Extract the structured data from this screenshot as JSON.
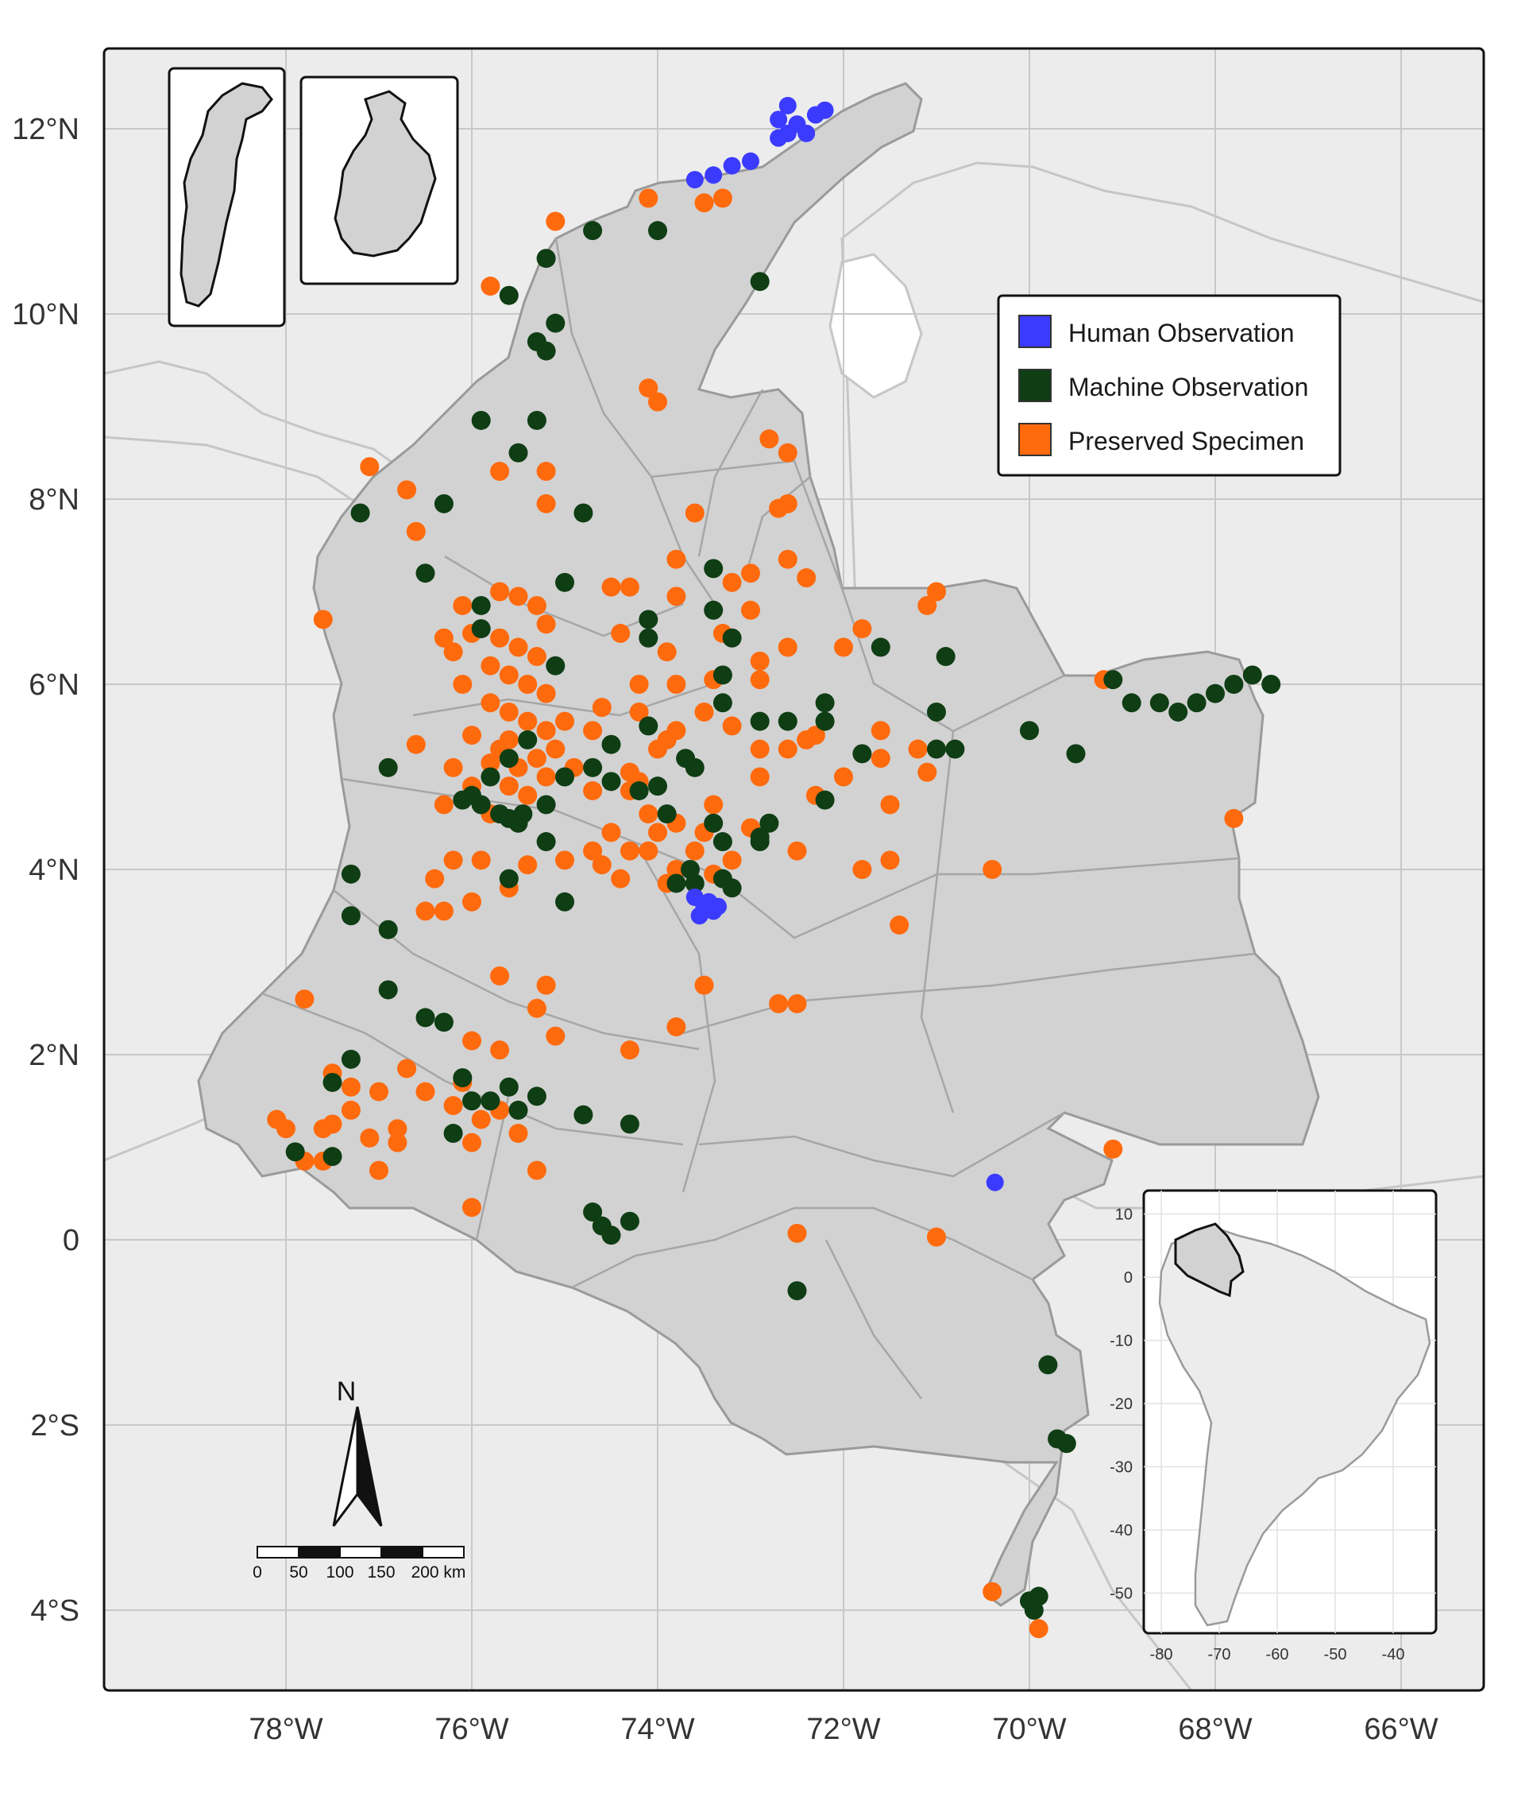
{
  "map": {
    "lon_labels": [
      "78°W",
      "76°W",
      "74°W",
      "72°W",
      "70°W",
      "68°W",
      "66°W"
    ],
    "lat_labels": [
      "12°N",
      "10°N",
      "8°N",
      "6°N",
      "4°N",
      "2°N",
      "0",
      "2°S",
      "4°S"
    ],
    "colors": {
      "sea": "#ececec",
      "land": "#d2d2d2",
      "neighbor_land": "#ececec",
      "border": "#9a9a9a",
      "grid": "#c8c8c8",
      "human": "#3b3bff",
      "machine": "#0f3d14",
      "preserved": "#ff6a0d"
    }
  },
  "legend": {
    "items": [
      {
        "label": "Human Observation",
        "color": "#3b3bff"
      },
      {
        "label": "Machine Observation",
        "color": "#0f3d14"
      },
      {
        "label": "Preserved Specimen",
        "color": "#ff6a0d"
      }
    ]
  },
  "scale_bar": {
    "ticks": [
      "0",
      "50",
      "100",
      "150",
      "200 km"
    ]
  },
  "north_arrow": {
    "label": "N"
  },
  "inset": {
    "y_ticks": [
      "10",
      "0",
      "-10",
      "-20",
      "-30",
      "-40",
      "-50"
    ],
    "x_ticks": [
      "-80",
      "-70",
      "-60",
      "-50",
      "-40"
    ]
  },
  "occurrences": {
    "human": [
      [
        -73.6,
        3.7
      ],
      [
        -73.5,
        3.6
      ],
      [
        -73.4,
        3.55
      ],
      [
        -73.55,
        3.5
      ],
      [
        -73.45,
        3.65
      ],
      [
        -73.35,
        3.6
      ],
      [
        -72.6,
        12.25
      ],
      [
        -72.7,
        12.1
      ],
      [
        -72.5,
        12.05
      ],
      [
        -72.3,
        12.15
      ],
      [
        -72.2,
        12.2
      ],
      [
        -72.6,
        11.95
      ],
      [
        -72.4,
        11.95
      ],
      [
        -72.7,
        11.9
      ],
      [
        -73.0,
        11.65
      ],
      [
        -73.2,
        11.6
      ],
      [
        -73.4,
        11.5
      ],
      [
        -73.6,
        11.45
      ],
      [
        -70.37,
        0.62
      ]
    ],
    "machine": [
      [
        -72.9,
        10.35
      ],
      [
        -74.0,
        10.9
      ],
      [
        -74.7,
        10.9
      ],
      [
        -75.2,
        10.6
      ],
      [
        -75.6,
        10.2
      ],
      [
        -75.1,
        9.9
      ],
      [
        -75.2,
        9.6
      ],
      [
        -75.3,
        9.7
      ],
      [
        -75.9,
        8.85
      ],
      [
        -75.3,
        8.85
      ],
      [
        -75.5,
        8.5
      ],
      [
        -74.8,
        7.85
      ],
      [
        -77.2,
        7.85
      ],
      [
        -76.3,
        7.95
      ],
      [
        -76.5,
        7.2
      ],
      [
        -75.0,
        7.1
      ],
      [
        -73.4,
        7.25
      ],
      [
        -73.4,
        6.8
      ],
      [
        -73.2,
        6.5
      ],
      [
        -75.1,
        6.2
      ],
      [
        -75.9,
        6.85
      ],
      [
        -75.9,
        6.6
      ],
      [
        -74.1,
        6.7
      ],
      [
        -74.1,
        6.5
      ],
      [
        -73.3,
        6.1
      ],
      [
        -73.3,
        5.8
      ],
      [
        -72.9,
        5.6
      ],
      [
        -72.6,
        5.6
      ],
      [
        -72.2,
        5.8
      ],
      [
        -72.2,
        5.6
      ],
      [
        -71.8,
        5.25
      ],
      [
        -71.0,
        5.3
      ],
      [
        -70.8,
        5.3
      ],
      [
        -70.0,
        5.5
      ],
      [
        -69.5,
        5.25
      ],
      [
        -71.0,
        5.7
      ],
      [
        -70.9,
        6.3
      ],
      [
        -71.6,
        6.4
      ],
      [
        -68.9,
        5.8
      ],
      [
        -68.6,
        5.8
      ],
      [
        -68.4,
        5.7
      ],
      [
        -68.2,
        5.8
      ],
      [
        -68.0,
        5.9
      ],
      [
        -67.8,
        6.0
      ],
      [
        -67.6,
        6.1
      ],
      [
        -67.4,
        6.0
      ],
      [
        -69.1,
        6.05
      ],
      [
        -75.4,
        5.4
      ],
      [
        -75.6,
        5.2
      ],
      [
        -75.8,
        5.0
      ],
      [
        -76.0,
        4.8
      ],
      [
        -75.7,
        4.6
      ],
      [
        -75.5,
        4.5
      ],
      [
        -75.2,
        4.7
      ],
      [
        -75.0,
        5.0
      ],
      [
        -74.7,
        5.1
      ],
      [
        -76.9,
        5.1
      ],
      [
        -74.1,
        5.55
      ],
      [
        -73.7,
        5.2
      ],
      [
        -74.0,
        4.9
      ],
      [
        -73.9,
        4.6
      ],
      [
        -73.4,
        4.5
      ],
      [
        -73.3,
        4.3
      ],
      [
        -72.9,
        4.35
      ],
      [
        -72.8,
        4.5
      ],
      [
        -73.6,
        3.85
      ],
      [
        -73.2,
        3.8
      ],
      [
        -73.3,
        3.9
      ],
      [
        -75.6,
        3.9
      ],
      [
        -75.0,
        3.65
      ],
      [
        -77.3,
        3.95
      ],
      [
        -77.3,
        3.5
      ],
      [
        -76.9,
        3.35
      ],
      [
        -75.2,
        4.3
      ],
      [
        -72.2,
        4.75
      ],
      [
        -76.9,
        2.7
      ],
      [
        -76.5,
        2.4
      ],
      [
        -76.3,
        2.35
      ],
      [
        -77.3,
        1.95
      ],
      [
        -77.5,
        1.7
      ],
      [
        -76.1,
        1.75
      ],
      [
        -76.0,
        1.5
      ],
      [
        -75.8,
        1.5
      ],
      [
        -75.6,
        1.65
      ],
      [
        -75.5,
        1.4
      ],
      [
        -75.3,
        1.55
      ],
      [
        -74.8,
        1.35
      ],
      [
        -74.3,
        1.25
      ],
      [
        -76.2,
        1.15
      ],
      [
        -77.5,
        0.9
      ],
      [
        -77.9,
        0.95
      ],
      [
        -74.7,
        0.3
      ],
      [
        -74.6,
        0.15
      ],
      [
        -74.5,
        0.05
      ],
      [
        -74.3,
        0.2
      ],
      [
        -72.5,
        -0.55
      ],
      [
        -69.8,
        -1.35
      ],
      [
        -69.7,
        -2.15
      ],
      [
        -69.6,
        -2.2
      ],
      [
        -69.9,
        -3.85
      ],
      [
        -69.95,
        -4.0
      ],
      [
        -70.0,
        -3.9
      ],
      [
        -73.65,
        4.0
      ],
      [
        -73.8,
        3.85
      ],
      [
        -72.9,
        4.3
      ],
      [
        -75.45,
        4.6
      ],
      [
        -75.6,
        4.55
      ],
      [
        -74.5,
        5.35
      ],
      [
        -74.5,
        4.95
      ],
      [
        -74.2,
        4.85
      ],
      [
        -73.6,
        5.1
      ],
      [
        -75.9,
        4.7
      ],
      [
        -76.1,
        4.75
      ]
    ],
    "preserved": [
      [
        -73.3,
        11.25
      ],
      [
        -73.5,
        11.2
      ],
      [
        -74.1,
        11.25
      ],
      [
        -75.1,
        11.0
      ],
      [
        -75.8,
        10.3
      ],
      [
        -74.1,
        9.2
      ],
      [
        -74.0,
        9.05
      ],
      [
        -77.1,
        8.35
      ],
      [
        -76.7,
        8.1
      ],
      [
        -76.6,
        7.65
      ],
      [
        -75.7,
        8.3
      ],
      [
        -75.2,
        8.3
      ],
      [
        -75.2,
        7.95
      ],
      [
        -73.6,
        7.85
      ],
      [
        -72.8,
        8.65
      ],
      [
        -72.6,
        8.5
      ],
      [
        -72.6,
        7.95
      ],
      [
        -72.7,
        7.9
      ],
      [
        -72.6,
        7.35
      ],
      [
        -72.4,
        7.15
      ],
      [
        -73.2,
        7.1
      ],
      [
        -73.0,
        7.2
      ],
      [
        -73.8,
        7.35
      ],
      [
        -74.3,
        7.05
      ],
      [
        -74.5,
        7.05
      ],
      [
        -73.8,
        6.95
      ],
      [
        -75.7,
        7.0
      ],
      [
        -75.5,
        6.95
      ],
      [
        -75.3,
        6.85
      ],
      [
        -75.2,
        6.65
      ],
      [
        -76.1,
        6.85
      ],
      [
        -76.3,
        6.5
      ],
      [
        -76.2,
        6.35
      ],
      [
        -76.0,
        6.55
      ],
      [
        -75.7,
        6.5
      ],
      [
        -75.5,
        6.4
      ],
      [
        -75.3,
        6.3
      ],
      [
        -75.6,
        6.1
      ],
      [
        -75.8,
        6.2
      ],
      [
        -76.1,
        6.0
      ],
      [
        -75.4,
        6.0
      ],
      [
        -75.2,
        5.9
      ],
      [
        -75.8,
        5.8
      ],
      [
        -75.6,
        5.7
      ],
      [
        -75.4,
        5.6
      ],
      [
        -75.2,
        5.5
      ],
      [
        -75.0,
        5.6
      ],
      [
        -75.6,
        5.4
      ],
      [
        -75.7,
        5.3
      ],
      [
        -75.8,
        5.15
      ],
      [
        -75.5,
        5.1
      ],
      [
        -75.3,
        5.2
      ],
      [
        -75.1,
        5.3
      ],
      [
        -74.9,
        5.1
      ],
      [
        -75.6,
        4.9
      ],
      [
        -75.4,
        4.8
      ],
      [
        -75.8,
        4.6
      ],
      [
        -76.0,
        4.9
      ],
      [
        -76.3,
        4.7
      ],
      [
        -74.3,
        4.85
      ],
      [
        -74.1,
        4.6
      ],
      [
        -74.0,
        4.4
      ],
      [
        -74.3,
        4.2
      ],
      [
        -74.6,
        4.05
      ],
      [
        -74.4,
        3.9
      ],
      [
        -73.8,
        4.5
      ],
      [
        -73.6,
        4.2
      ],
      [
        -73.8,
        4.0
      ],
      [
        -73.4,
        3.95
      ],
      [
        -73.2,
        4.1
      ],
      [
        -73.5,
        4.4
      ],
      [
        -74.1,
        4.2
      ],
      [
        -73.9,
        3.85
      ],
      [
        -74.5,
        4.4
      ],
      [
        -74.7,
        4.2
      ],
      [
        -75.0,
        4.1
      ],
      [
        -75.4,
        4.05
      ],
      [
        -75.9,
        4.1
      ],
      [
        -76.2,
        4.1
      ],
      [
        -75.6,
        3.8
      ],
      [
        -76.3,
        3.55
      ],
      [
        -76.5,
        3.55
      ],
      [
        -76.4,
        3.9
      ],
      [
        -76.0,
        3.65
      ],
      [
        -74.3,
        5.05
      ],
      [
        -74.0,
        5.3
      ],
      [
        -73.8,
        5.5
      ],
      [
        -73.5,
        5.7
      ],
      [
        -73.2,
        5.55
      ],
      [
        -72.9,
        5.3
      ],
      [
        -72.6,
        5.3
      ],
      [
        -72.4,
        5.4
      ],
      [
        -72.0,
        5.0
      ],
      [
        -71.6,
        5.5
      ],
      [
        -71.2,
        5.3
      ],
      [
        -71.6,
        5.2
      ],
      [
        -71.5,
        4.7
      ],
      [
        -72.3,
        4.8
      ],
      [
        -72.5,
        4.2
      ],
      [
        -73.0,
        4.45
      ],
      [
        -73.4,
        4.7
      ],
      [
        -71.8,
        4.0
      ],
      [
        -71.5,
        4.1
      ],
      [
        -71.4,
        3.4
      ],
      [
        -72.7,
        2.55
      ],
      [
        -72.5,
        2.55
      ],
      [
        -73.5,
        2.75
      ],
      [
        -73.8,
        2.3
      ],
      [
        -74.3,
        2.05
      ],
      [
        -75.2,
        2.75
      ],
      [
        -75.3,
        2.5
      ],
      [
        -75.7,
        2.85
      ],
      [
        -75.7,
        2.05
      ],
      [
        -75.1,
        2.2
      ],
      [
        -76.0,
        2.15
      ],
      [
        -76.1,
        1.7
      ],
      [
        -76.7,
        1.85
      ],
      [
        -76.5,
        1.6
      ],
      [
        -76.2,
        1.45
      ],
      [
        -75.9,
        1.3
      ],
      [
        -75.7,
        1.4
      ],
      [
        -75.5,
        1.15
      ],
      [
        -76.0,
        1.05
      ],
      [
        -76.8,
        1.2
      ],
      [
        -76.8,
        1.05
      ],
      [
        -77.0,
        1.6
      ],
      [
        -77.1,
        1.1
      ],
      [
        -77.3,
        1.4
      ],
      [
        -77.5,
        1.25
      ],
      [
        -77.3,
        1.65
      ],
      [
        -77.5,
        1.8
      ],
      [
        -77.8,
        2.6
      ],
      [
        -78.1,
        1.3
      ],
      [
        -78.0,
        1.2
      ],
      [
        -77.6,
        1.2
      ],
      [
        -77.6,
        0.85
      ],
      [
        -77.8,
        0.85
      ],
      [
        -77.0,
        0.75
      ],
      [
        -75.3,
        0.75
      ],
      [
        -76.0,
        0.35
      ],
      [
        -72.5,
        0.07
      ],
      [
        -71.0,
        0.03
      ],
      [
        -69.1,
        0.98
      ],
      [
        -67.8,
        4.55
      ],
      [
        -69.2,
        6.05
      ],
      [
        -77.6,
        6.7
      ],
      [
        -71.1,
        6.85
      ],
      [
        -71.0,
        7.0
      ],
      [
        -72.0,
        6.4
      ],
      [
        -71.8,
        6.6
      ],
      [
        -72.6,
        6.4
      ],
      [
        -73.0,
        6.8
      ],
      [
        -73.3,
        6.55
      ],
      [
        -72.9,
        6.25
      ],
      [
        -73.9,
        6.35
      ],
      [
        -74.4,
        6.55
      ],
      [
        -74.2,
        6.0
      ],
      [
        -73.8,
        6.0
      ],
      [
        -73.4,
        6.05
      ],
      [
        -72.9,
        6.05
      ],
      [
        -74.6,
        5.75
      ],
      [
        -74.7,
        5.5
      ],
      [
        -74.2,
        5.7
      ],
      [
        -73.9,
        5.4
      ],
      [
        -76.0,
        5.45
      ],
      [
        -76.2,
        5.1
      ],
      [
        -76.6,
        5.35
      ],
      [
        -74.2,
        4.95
      ],
      [
        -74.7,
        4.85
      ],
      [
        -75.2,
        5.0
      ],
      [
        -72.9,
        5.0
      ],
      [
        -72.3,
        5.45
      ],
      [
        -71.1,
        5.05
      ],
      [
        -70.4,
        -3.8
      ],
      [
        -69.9,
        -4.2
      ],
      [
        -70.4,
        4.0
      ]
    ]
  }
}
